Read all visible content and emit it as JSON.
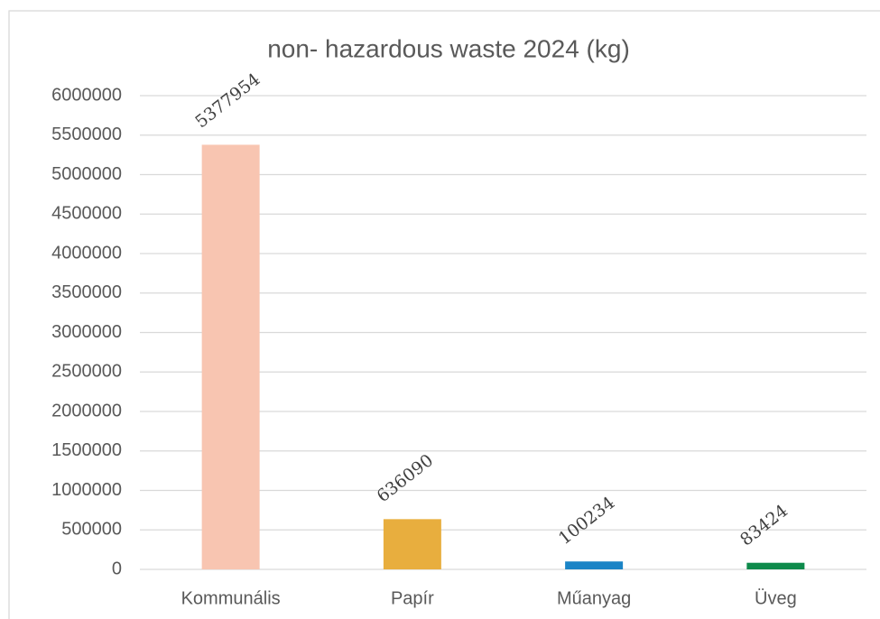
{
  "chart_data": {
    "type": "bar",
    "title": "non- hazardous waste 2024 (kg)",
    "categories": [
      "Kommunális",
      "Papír",
      "Műanyag",
      "Üveg"
    ],
    "values": [
      5377954,
      636090,
      100234,
      83424
    ],
    "colors": [
      "#f8c5b1",
      "#e8ae3e",
      "#1b84c6",
      "#0e8a4b"
    ],
    "ylim": [
      0,
      6000000
    ],
    "yticks": [
      0,
      500000,
      1000000,
      1500000,
      2000000,
      2500000,
      3000000,
      3500000,
      4000000,
      4500000,
      5000000,
      5500000,
      6000000
    ],
    "grid": true
  }
}
